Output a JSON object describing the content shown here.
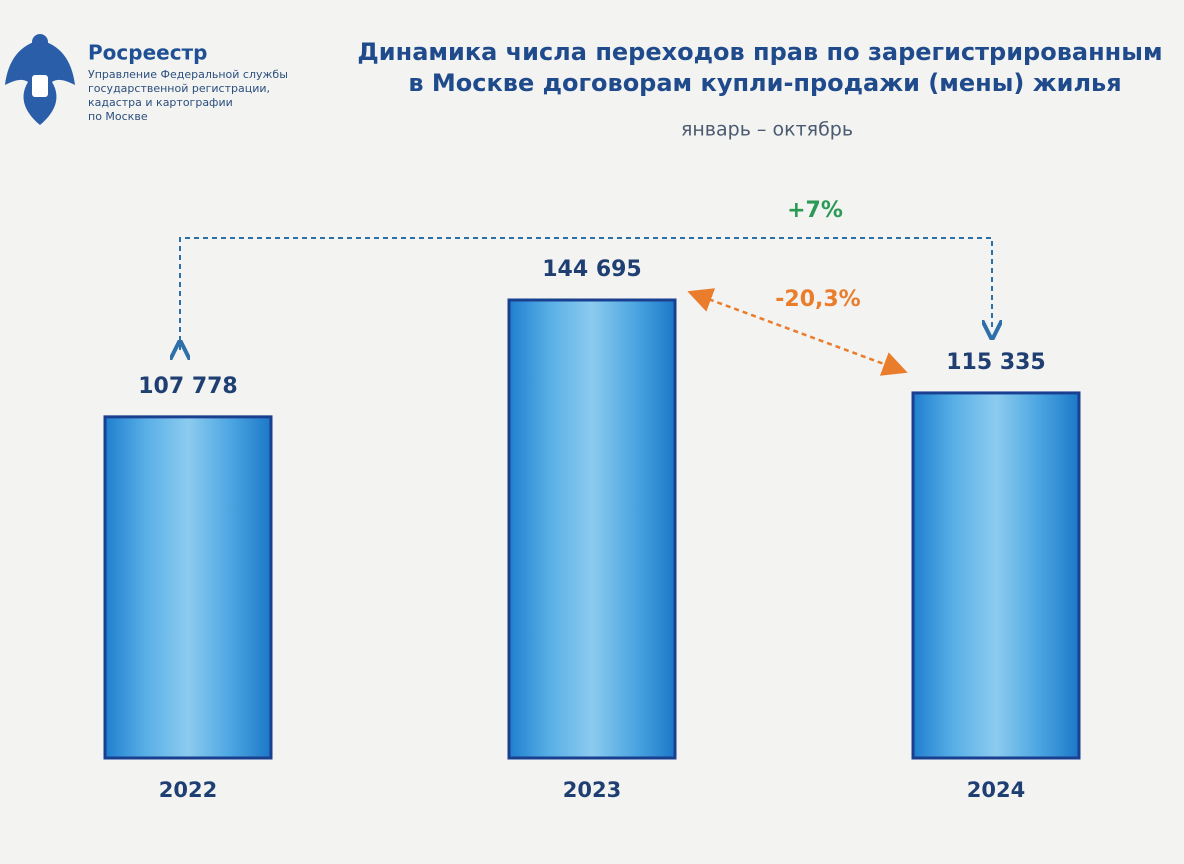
{
  "chart_data": {
    "type": "bar",
    "logo": {
      "name": "Росреестр",
      "lines": [
        "Управление Федеральной службы",
        "государственной регистрации,",
        "кадастра и картографии",
        "по Москве"
      ]
    },
    "title": [
      "Динамика числа переходов прав по зарегистрированным",
      "в Москве договорам купли-продажи (мены) жилья"
    ],
    "subtitle": "январь – октябрь",
    "categories": [
      "2022",
      "2023",
      "2024"
    ],
    "values": [
      107778,
      144695,
      115335
    ],
    "value_labels": [
      "107 778",
      "144 695",
      "115 335"
    ],
    "color": "#2f8fd8",
    "annotations": [
      {
        "text": "+7%",
        "color": "#2a9a55"
      },
      {
        "text": "-20,3%",
        "color": "#ea7d2c"
      }
    ]
  }
}
